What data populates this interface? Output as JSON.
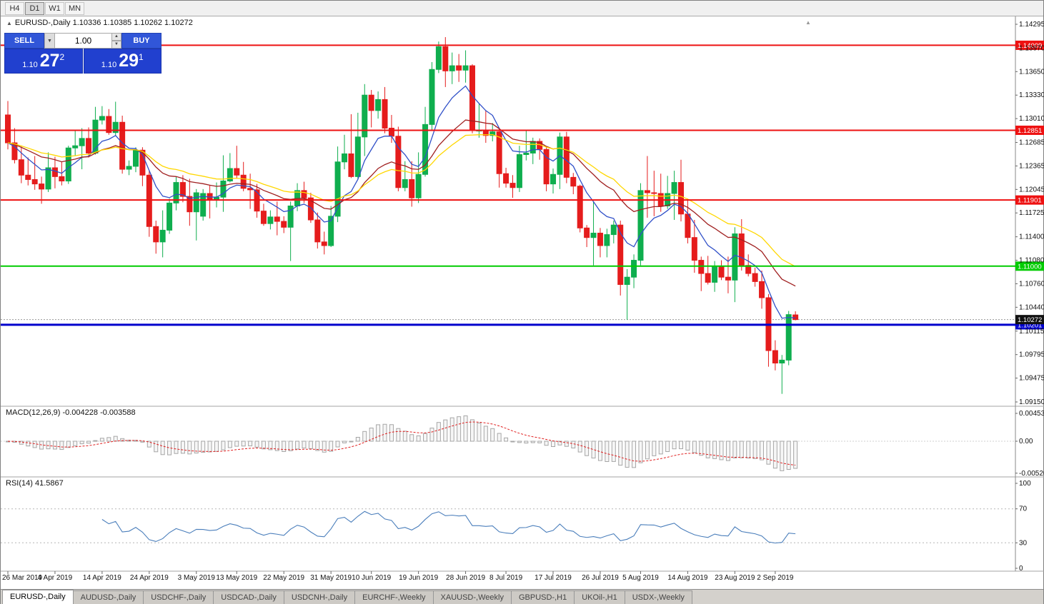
{
  "toolbar": {
    "timeframes": [
      {
        "label": "H4",
        "active": false
      },
      {
        "label": "D1",
        "active": true
      },
      {
        "label": "W1",
        "active": false
      },
      {
        "label": "MN",
        "active": false
      }
    ]
  },
  "chart_header": {
    "collapse_icon": "▲",
    "scroll_icon": "▲",
    "title": "EURUSD-,Daily  1.10336 1.10385 1.10262 1.10272"
  },
  "trade_panel": {
    "sell_label": "SELL",
    "buy_label": "BUY",
    "volume": "1.00",
    "sell_price_small": "1.10",
    "sell_price_big": "27",
    "sell_price_sup": "2",
    "buy_price_small": "1.10",
    "buy_price_big": "29",
    "buy_price_sup": "1"
  },
  "price_axis": {
    "ticks": [
      "1.14295",
      "1.13970",
      "1.13650",
      "1.13330",
      "1.13010",
      "1.12685",
      "1.12365",
      "1.12045",
      "1.11725",
      "1.11400",
      "1.11080",
      "1.10760",
      "1.10440",
      "1.10115",
      "1.09795",
      "1.09475",
      "1.09150"
    ]
  },
  "hlines": [
    {
      "price": 1.14009,
      "label": "1.14009",
      "color": "#ee1111",
      "width": 2
    },
    {
      "price": 1.12851,
      "label": "1.12851",
      "color": "#ee1111",
      "width": 2
    },
    {
      "price": 1.11901,
      "label": "1.11901",
      "color": "#ee1111",
      "width": 2
    },
    {
      "price": 1.11,
      "label": "1.11000",
      "color": "#00cc00",
      "width": 2
    },
    {
      "price": 1.10201,
      "label": "1.10201",
      "color": "#0000cd",
      "width": 3
    }
  ],
  "current_price": {
    "value": 1.10272,
    "label": "1.10272",
    "line_color": "#999999",
    "box_color": "#111111"
  },
  "indicator_panels": {
    "macd": {
      "title": "MACD(12,26,9) -0.004228 -0.003588",
      "axis_ticks": [
        {
          "value": 0.004536,
          "label": "0.004536"
        },
        {
          "value": 0,
          "label": "0.00"
        },
        {
          "value": -0.005205,
          "label": "-0.005205"
        }
      ]
    },
    "rsi": {
      "title": "RSI(14) 41.5867",
      "levels": [
        70,
        30
      ],
      "axis_ticks": [
        {
          "value": 100,
          "label": "100"
        },
        {
          "value": 70,
          "label": "70"
        },
        {
          "value": 30,
          "label": "30"
        },
        {
          "value": 0,
          "label": "0"
        }
      ]
    }
  },
  "chart_data": {
    "type": "candlestick",
    "symbol": "EURUSD-",
    "timeframe": "Daily",
    "ohlc_current": {
      "open": 1.10336,
      "high": 1.10385,
      "low": 1.10262,
      "close": 1.10272
    },
    "colors": {
      "bull": "#0fae4e",
      "bear": "#e51c1c",
      "background": "#ffffff"
    },
    "moving_averages": [
      {
        "period": 8,
        "color": "#3050c8"
      },
      {
        "period": 20,
        "color": "#a02020"
      },
      {
        "period": 30,
        "color": "#ffd700"
      }
    ],
    "macd": {
      "fast": 12,
      "slow": 26,
      "signal": 9,
      "histogram_color": "#a6a6a6",
      "signal_color": "#e02020"
    },
    "rsi": {
      "period": 14,
      "color": "#4a7ebb"
    },
    "x_labels": [
      {
        "i": 0,
        "label": "26 Mar 2019"
      },
      {
        "i": 7,
        "label": "4 Apr 2019"
      },
      {
        "i": 14,
        "label": "14 Apr 2019"
      },
      {
        "i": 21,
        "label": "24 Apr 2019"
      },
      {
        "i": 28,
        "label": "3 May 2019"
      },
      {
        "i": 34,
        "label": "13 May 2019"
      },
      {
        "i": 41,
        "label": "22 May 2019"
      },
      {
        "i": 48,
        "label": "31 May 2019"
      },
      {
        "i": 54,
        "label": "10 Jun 2019"
      },
      {
        "i": 61,
        "label": "19 Jun 2019"
      },
      {
        "i": 68,
        "label": "28 Jun 2019"
      },
      {
        "i": 74,
        "label": "8 Jul 2019"
      },
      {
        "i": 81,
        "label": "17 Jul 2019"
      },
      {
        "i": 88,
        "label": "26 Jul 2019"
      },
      {
        "i": 94,
        "label": "5 Aug 2019"
      },
      {
        "i": 101,
        "label": "14 Aug 2019"
      },
      {
        "i": 108,
        "label": "23 Aug 2019"
      },
      {
        "i": 114,
        "label": "2 Sep 2019"
      }
    ],
    "candles": [
      [
        1.1306,
        1.1325,
        1.1259,
        1.1268
      ],
      [
        1.1268,
        1.1288,
        1.124,
        1.1245
      ],
      [
        1.1245,
        1.1263,
        1.1213,
        1.1224
      ],
      [
        1.1224,
        1.1248,
        1.121,
        1.1218
      ],
      [
        1.1218,
        1.125,
        1.1204,
        1.1212
      ],
      [
        1.1212,
        1.1222,
        1.1185,
        1.1205
      ],
      [
        1.1205,
        1.1255,
        1.1201,
        1.1234
      ],
      [
        1.1234,
        1.1249,
        1.1206,
        1.1222
      ],
      [
        1.1222,
        1.1242,
        1.121,
        1.1216
      ],
      [
        1.1216,
        1.1264,
        1.1212,
        1.1261
      ],
      [
        1.1261,
        1.1285,
        1.125,
        1.1264
      ],
      [
        1.1264,
        1.1288,
        1.1232,
        1.1274
      ],
      [
        1.1274,
        1.1289,
        1.1248,
        1.1254
      ],
      [
        1.1254,
        1.1317,
        1.1252,
        1.1299
      ],
      [
        1.1299,
        1.1318,
        1.1293,
        1.1304
      ],
      [
        1.1304,
        1.1314,
        1.1279,
        1.1282
      ],
      [
        1.1282,
        1.1324,
        1.1278,
        1.1296
      ],
      [
        1.1296,
        1.1305,
        1.1226,
        1.1232
      ],
      [
        1.1232,
        1.1244,
        1.1224,
        1.1236
      ],
      [
        1.1236,
        1.1262,
        1.1228,
        1.1258
      ],
      [
        1.1258,
        1.1262,
        1.1209,
        1.1224
      ],
      [
        1.1224,
        1.123,
        1.114,
        1.1154
      ],
      [
        1.1154,
        1.1162,
        1.1117,
        1.1133
      ],
      [
        1.1133,
        1.1176,
        1.1112,
        1.1149
      ],
      [
        1.1149,
        1.1192,
        1.1144,
        1.1186
      ],
      [
        1.1186,
        1.1222,
        1.1176,
        1.1214
      ],
      [
        1.1214,
        1.1224,
        1.1187,
        1.1195
      ],
      [
        1.1195,
        1.1219,
        1.1155,
        1.1174
      ],
      [
        1.1174,
        1.1205,
        1.1135,
        1.12
      ],
      [
        1.1168,
        1.1205,
        1.1162,
        1.1199
      ],
      [
        1.1199,
        1.121,
        1.1165,
        1.1191
      ],
      [
        1.1191,
        1.1214,
        1.118,
        1.1194
      ],
      [
        1.1194,
        1.1251,
        1.1174,
        1.1216
      ],
      [
        1.1216,
        1.1254,
        1.1214,
        1.1233
      ],
      [
        1.1233,
        1.1264,
        1.1219,
        1.1224
      ],
      [
        1.1224,
        1.1242,
        1.1202,
        1.1206
      ],
      [
        1.1206,
        1.1226,
        1.1178,
        1.1204
      ],
      [
        1.1204,
        1.1212,
        1.1166,
        1.1175
      ],
      [
        1.1175,
        1.1185,
        1.1155,
        1.1158
      ],
      [
        1.1158,
        1.1176,
        1.115,
        1.1167
      ],
      [
        1.1167,
        1.1188,
        1.1142,
        1.1161
      ],
      [
        1.1161,
        1.1168,
        1.1145,
        1.1153
      ],
      [
        1.1153,
        1.1188,
        1.1107,
        1.1182
      ],
      [
        1.1182,
        1.1213,
        1.1175,
        1.1203
      ],
      [
        1.1203,
        1.1215,
        1.1186,
        1.1193
      ],
      [
        1.1193,
        1.12,
        1.1159,
        1.1163
      ],
      [
        1.1163,
        1.1173,
        1.1124,
        1.1133
      ],
      [
        1.1133,
        1.1147,
        1.1116,
        1.1128
      ],
      [
        1.1128,
        1.1182,
        1.1126,
        1.1168
      ],
      [
        1.1168,
        1.1263,
        1.116,
        1.1242
      ],
      [
        1.1242,
        1.1279,
        1.1232,
        1.1253
      ],
      [
        1.1253,
        1.1307,
        1.122,
        1.1222
      ],
      [
        1.1222,
        1.1309,
        1.1219,
        1.1276
      ],
      [
        1.1276,
        1.1348,
        1.125,
        1.1333
      ],
      [
        1.1333,
        1.134,
        1.1289,
        1.1312
      ],
      [
        1.1312,
        1.1338,
        1.1301,
        1.1327
      ],
      [
        1.1327,
        1.1344,
        1.1281,
        1.1288
      ],
      [
        1.1288,
        1.1306,
        1.1268,
        1.1277
      ],
      [
        1.1277,
        1.129,
        1.1202,
        1.1207
      ],
      [
        1.1207,
        1.1243,
        1.1202,
        1.1218
      ],
      [
        1.1218,
        1.1243,
        1.1181,
        1.1193
      ],
      [
        1.1193,
        1.1255,
        1.1186,
        1.1225
      ],
      [
        1.1225,
        1.1317,
        1.1222,
        1.1293
      ],
      [
        1.1293,
        1.1378,
        1.1285,
        1.1368
      ],
      [
        1.1368,
        1.1406,
        1.1363,
        1.1399
      ],
      [
        1.1399,
        1.1412,
        1.1344,
        1.1366
      ],
      [
        1.1366,
        1.1391,
        1.1348,
        1.1373
      ],
      [
        1.1373,
        1.1389,
        1.1351,
        1.1367
      ],
      [
        1.1367,
        1.1394,
        1.135,
        1.1373
      ],
      [
        1.1373,
        1.1375,
        1.1281,
        1.1285
      ],
      [
        1.1285,
        1.1322,
        1.1275,
        1.1285
      ],
      [
        1.1285,
        1.1312,
        1.1268,
        1.1278
      ],
      [
        1.1278,
        1.1295,
        1.127,
        1.1283
      ],
      [
        1.1283,
        1.1288,
        1.1207,
        1.1226
      ],
      [
        1.1226,
        1.1234,
        1.1207,
        1.1213
      ],
      [
        1.1213,
        1.1224,
        1.1193,
        1.1207
      ],
      [
        1.1207,
        1.1264,
        1.1201,
        1.1252
      ],
      [
        1.1252,
        1.1285,
        1.1244,
        1.1254
      ],
      [
        1.1254,
        1.1275,
        1.1239,
        1.127
      ],
      [
        1.127,
        1.1274,
        1.1245,
        1.1259
      ],
      [
        1.1259,
        1.1263,
        1.1202,
        1.1212
      ],
      [
        1.1212,
        1.1233,
        1.1199,
        1.1225
      ],
      [
        1.1225,
        1.1282,
        1.1205,
        1.1276
      ],
      [
        1.1276,
        1.1283,
        1.1213,
        1.1221
      ],
      [
        1.1221,
        1.1227,
        1.1198,
        1.1209
      ],
      [
        1.1209,
        1.1211,
        1.1146,
        1.1152
      ],
      [
        1.1152,
        1.1156,
        1.1126,
        1.1139
      ],
      [
        1.1139,
        1.1188,
        1.1101,
        1.1145
      ],
      [
        1.1145,
        1.1152,
        1.1112,
        1.1128
      ],
      [
        1.1128,
        1.1151,
        1.1112,
        1.1143
      ],
      [
        1.1143,
        1.1162,
        1.1131,
        1.1156
      ],
      [
        1.1156,
        1.1162,
        1.106,
        1.1075
      ],
      [
        1.1075,
        1.1096,
        1.1027,
        1.1085
      ],
      [
        1.1085,
        1.1116,
        1.107,
        1.1108
      ],
      [
        1.1108,
        1.1213,
        1.1101,
        1.1203
      ],
      [
        1.1203,
        1.125,
        1.1166,
        1.12
      ],
      [
        1.12,
        1.123,
        1.1168,
        1.1199
      ],
      [
        1.1199,
        1.1226,
        1.1174,
        1.1182
      ],
      [
        1.1182,
        1.1223,
        1.1178,
        1.1199
      ],
      [
        1.1199,
        1.123,
        1.1163,
        1.1214
      ],
      [
        1.1214,
        1.1245,
        1.1161,
        1.1171
      ],
      [
        1.1171,
        1.1192,
        1.1131,
        1.1139
      ],
      [
        1.1139,
        1.1163,
        1.1091,
        1.1108
      ],
      [
        1.1108,
        1.1113,
        1.1066,
        1.109
      ],
      [
        1.109,
        1.1114,
        1.1075,
        1.1078
      ],
      [
        1.1078,
        1.1107,
        1.1065,
        1.11
      ],
      [
        1.11,
        1.1108,
        1.1081,
        1.1085
      ],
      [
        1.1085,
        1.1113,
        1.1063,
        1.1081
      ],
      [
        1.1081,
        1.1153,
        1.1051,
        1.1144
      ],
      [
        1.1144,
        1.1164,
        1.1094,
        1.1101
      ],
      [
        1.1101,
        1.1116,
        1.1086,
        1.109
      ],
      [
        1.109,
        1.1098,
        1.1072,
        1.1079
      ],
      [
        1.1079,
        1.1094,
        1.1042,
        1.1057
      ],
      [
        1.1057,
        1.1062,
        1.0963,
        1.0985
      ],
      [
        1.0985,
        1.0999,
        1.0958,
        1.0968
      ],
      [
        1.0968,
        1.0979,
        1.0926,
        1.0972
      ],
      [
        1.0972,
        1.1039,
        1.0965,
        1.1034
      ],
      [
        1.10336,
        1.10385,
        1.10262,
        1.10272
      ]
    ]
  },
  "tabs": [
    {
      "label": "EURUSD-,Daily",
      "active": true
    },
    {
      "label": "AUDUSD-,Daily",
      "active": false
    },
    {
      "label": "USDCHF-,Daily",
      "active": false
    },
    {
      "label": "USDCAD-,Daily",
      "active": false
    },
    {
      "label": "USDCNH-,Daily",
      "active": false
    },
    {
      "label": "EURCHF-,Weekly",
      "active": false
    },
    {
      "label": "XAUUSD-,Weekly",
      "active": false
    },
    {
      "label": "GBPUSD-,H1",
      "active": false
    },
    {
      "label": "UKOil-,H1",
      "active": false
    },
    {
      "label": "USDX-,Weekly",
      "active": false
    }
  ]
}
